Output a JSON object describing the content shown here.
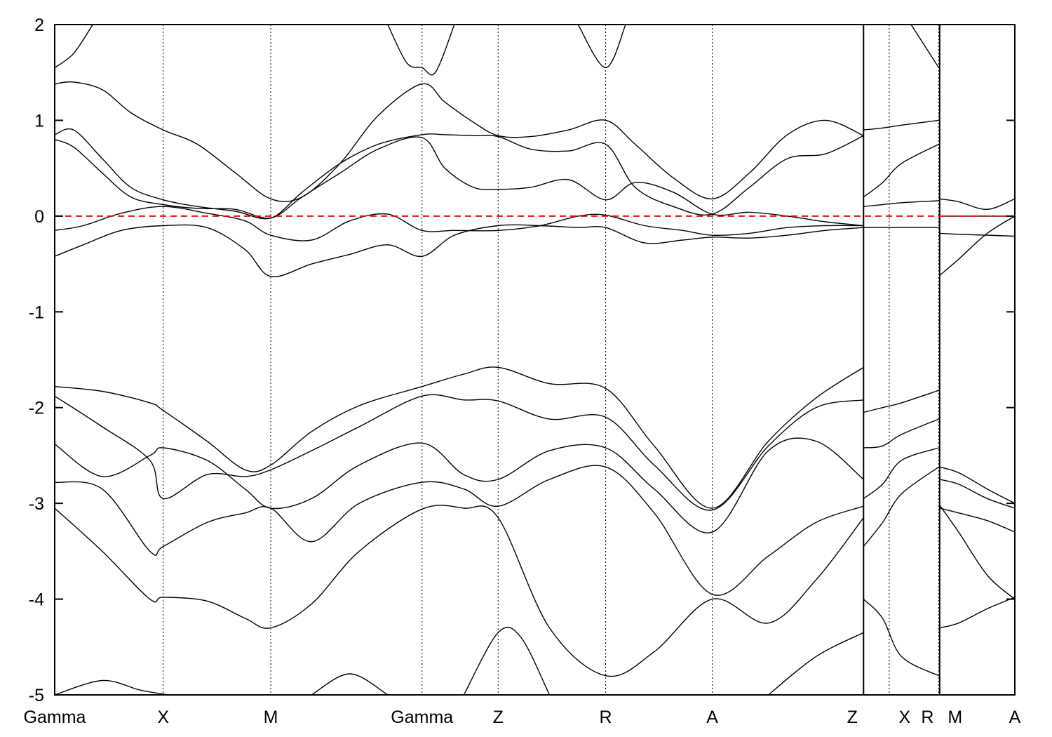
{
  "chart_data": {
    "type": "line",
    "title": "",
    "xlabel": "",
    "ylabel": "",
    "ylim": [
      -5,
      2
    ],
    "yticks": [
      2,
      1,
      0,
      -1,
      -2,
      -3,
      -4,
      -5
    ],
    "ytick_labels": [
      "2",
      "1",
      "0",
      "-1",
      "-2",
      "-3",
      "-4",
      "-5"
    ],
    "grid": false,
    "fermi_level": {
      "energy": 0,
      "color": "#e01010",
      "style": "dashed"
    },
    "kpath": {
      "labels": [
        "Gamma",
        "X",
        "M",
        "Gamma",
        "Z",
        "R",
        "A",
        "Z",
        "X",
        "R",
        "M",
        "A"
      ],
      "positions": [
        0,
        1.14,
        2.27,
        3.86,
        4.66,
        5.79,
        6.91,
        8.5,
        8.77,
        9.29,
        9.3,
        10.09
      ],
      "discontinuities": [
        8.5,
        9.3
      ],
      "xlim": [
        0,
        10.09
      ]
    },
    "series": [
      {
        "x": [
          0,
          0.2,
          0.5,
          0.8,
          1.14,
          1.5,
          1.9,
          2.27,
          2.6,
          3.0,
          3.4,
          3.86,
          4.1,
          4.4,
          4.66,
          5.0,
          5.4,
          5.79,
          6.1,
          6.5,
          6.91,
          7.3,
          7.7,
          8.1,
          8.5
        ],
        "y": [
          1.38,
          1.4,
          1.32,
          1.08,
          0.9,
          0.75,
          0.45,
          0.18,
          0.2,
          0.55,
          1.05,
          1.38,
          1.19,
          0.98,
          0.84,
          0.83,
          0.9,
          1.0,
          0.75,
          0.4,
          0.18,
          0.45,
          0.85,
          1.0,
          0.84
        ]
      },
      {
        "x": [
          0,
          0.2,
          0.5,
          0.8,
          1.14,
          1.5,
          1.9,
          2.27,
          2.6,
          3.0,
          3.4,
          3.86,
          4.1,
          4.4,
          4.66,
          5.0,
          5.4,
          5.79,
          6.1,
          6.5,
          6.91,
          7.3,
          7.7,
          8.1,
          8.5
        ],
        "y": [
          0.85,
          0.9,
          0.6,
          0.3,
          0.17,
          0.1,
          0.05,
          -0.02,
          0.25,
          0.55,
          0.75,
          0.85,
          0.85,
          0.84,
          0.83,
          0.7,
          0.68,
          0.75,
          0.3,
          0.1,
          0.02,
          0.3,
          0.6,
          0.65,
          0.84
        ]
      },
      {
        "x": [
          0,
          0.2,
          0.5,
          0.8,
          1.14,
          1.5,
          1.9,
          2.27,
          2.6,
          3.0,
          3.4,
          3.86,
          4.1,
          4.4,
          4.66,
          5.0,
          5.4,
          5.79,
          6.1,
          6.5,
          6.91,
          7.3,
          7.7,
          8.1,
          8.5
        ],
        "y": [
          0.8,
          0.72,
          0.45,
          0.2,
          0.12,
          0.08,
          0.07,
          -0.02,
          0.2,
          0.45,
          0.7,
          0.82,
          0.5,
          0.3,
          0.28,
          0.3,
          0.38,
          0.17,
          0.35,
          0.25,
          0.02,
          0.04,
          0.0,
          -0.06,
          -0.1
        ]
      },
      {
        "x": [
          0,
          0.3,
          0.7,
          1.14,
          1.6,
          2.0,
          2.27,
          2.7,
          3.1,
          3.5,
          3.86,
          4.2,
          4.66,
          5.1,
          5.5,
          5.79,
          6.2,
          6.6,
          6.91,
          7.3,
          7.7,
          8.1,
          8.5
        ],
        "y": [
          -0.15,
          -0.1,
          0.03,
          0.1,
          0.03,
          -0.05,
          -0.2,
          -0.25,
          -0.05,
          0.02,
          -0.15,
          -0.15,
          -0.15,
          -0.1,
          0.0,
          0.01,
          -0.1,
          -0.15,
          -0.2,
          -0.18,
          -0.12,
          -0.1,
          -0.1
        ]
      },
      {
        "x": [
          0,
          0.3,
          0.7,
          1.14,
          1.6,
          2.0,
          2.27,
          2.7,
          3.1,
          3.5,
          3.86,
          4.2,
          4.66,
          5.1,
          5.5,
          5.79,
          6.2,
          6.6,
          6.91,
          7.3,
          7.7,
          8.1,
          8.5
        ],
        "y": [
          -0.42,
          -0.3,
          -0.15,
          -0.1,
          -0.12,
          -0.35,
          -0.63,
          -0.5,
          -0.4,
          -0.3,
          -0.42,
          -0.2,
          -0.1,
          -0.1,
          -0.12,
          -0.12,
          -0.28,
          -0.25,
          -0.22,
          -0.23,
          -0.2,
          -0.15,
          -0.12
        ]
      },
      {
        "x": [
          0,
          0.5,
          1.0,
          1.14,
          1.6,
          2.0,
          2.27,
          2.7,
          3.2,
          3.86,
          4.3,
          4.66,
          5.2,
          5.79,
          6.3,
          6.91,
          7.5,
          8.0,
          8.5
        ],
        "y": [
          -1.78,
          -1.83,
          -1.95,
          -2.03,
          -2.35,
          -2.65,
          -2.6,
          -2.25,
          -1.98,
          -1.78,
          -1.65,
          -1.58,
          -1.75,
          -1.8,
          -2.4,
          -3.05,
          -2.35,
          -1.9,
          -1.58
        ]
      },
      {
        "x": [
          0,
          0.5,
          1.0,
          1.14,
          1.6,
          2.0,
          2.27,
          2.7,
          3.2,
          3.86,
          4.3,
          4.66,
          5.2,
          5.79,
          6.3,
          6.91,
          7.5,
          8.0,
          8.5
        ],
        "y": [
          -1.88,
          -2.2,
          -2.55,
          -2.95,
          -2.7,
          -2.72,
          -2.65,
          -2.45,
          -2.2,
          -1.88,
          -1.92,
          -1.93,
          -2.12,
          -2.1,
          -2.6,
          -3.07,
          -2.4,
          -2.0,
          -1.92
        ]
      },
      {
        "x": [
          0,
          0.5,
          1.0,
          1.14,
          1.6,
          2.0,
          2.27,
          2.7,
          3.2,
          3.86,
          4.3,
          4.66,
          5.2,
          5.79,
          6.3,
          6.91,
          7.5,
          8.0,
          8.5
        ],
        "y": [
          -2.38,
          -2.72,
          -2.5,
          -2.42,
          -2.55,
          -2.85,
          -3.05,
          -2.95,
          -2.6,
          -2.37,
          -2.7,
          -2.75,
          -2.45,
          -2.42,
          -2.85,
          -3.3,
          -2.45,
          -2.35,
          -2.75
        ]
      },
      {
        "x": [
          0,
          0.5,
          1.0,
          1.14,
          1.6,
          2.0,
          2.27,
          2.7,
          3.2,
          3.86,
          4.3,
          4.66,
          5.2,
          5.79,
          6.3,
          6.91,
          7.5,
          8.0,
          8.5
        ],
        "y": [
          -2.78,
          -2.85,
          -3.5,
          -3.45,
          -3.2,
          -3.1,
          -3.05,
          -3.4,
          -3.0,
          -2.78,
          -2.85,
          -3.03,
          -2.75,
          -2.62,
          -3.1,
          -3.95,
          -3.55,
          -3.2,
          -3.03
        ]
      },
      {
        "x": [
          0,
          0.5,
          1.0,
          1.14,
          1.6,
          2.0,
          2.27,
          2.7,
          3.2,
          3.86,
          4.3,
          4.66,
          5.2,
          5.79,
          6.3,
          6.91,
          7.5,
          8.0,
          8.5
        ],
        "y": [
          -3.05,
          -3.5,
          -4.0,
          -3.98,
          -4.02,
          -4.2,
          -4.3,
          -4.05,
          -3.5,
          -3.06,
          -3.05,
          -3.15,
          -4.3,
          -4.8,
          -4.55,
          -4.0,
          -4.25,
          -3.8,
          -3.15
        ]
      },
      {
        "x": [
          0,
          0.5,
          0.9,
          1.2
        ],
        "y": [
          -5.0,
          -4.85,
          -4.95,
          -5.0
        ]
      },
      {
        "x": [
          2.7,
          3.1,
          3.5
        ],
        "y": [
          -5.0,
          -4.78,
          -5.0
        ]
      },
      {
        "x": [
          4.3,
          4.66,
          4.9,
          5.2
        ],
        "y": [
          -5.0,
          -4.35,
          -4.4,
          -5.0
        ]
      },
      {
        "x": [
          7.5,
          8.0,
          8.5
        ],
        "y": [
          -5.0,
          -4.6,
          -4.35
        ]
      },
      {
        "x": [
          0,
          0.2,
          0.4
        ],
        "y": [
          1.55,
          1.7,
          2.0
        ]
      },
      {
        "x": [
          3.5,
          3.7,
          3.86,
          4.0,
          4.2
        ],
        "y": [
          2.0,
          1.6,
          1.55,
          1.5,
          2.0
        ]
      },
      {
        "x": [
          5.5,
          5.79,
          6.0
        ],
        "y": [
          2.0,
          1.55,
          2.0
        ]
      },
      {
        "x": [
          8.5,
          8.7,
          8.9,
          9.29
        ],
        "y": [
          0.9,
          0.92,
          0.95,
          1.0
        ]
      },
      {
        "x": [
          8.5,
          8.7,
          8.9,
          9.29
        ],
        "y": [
          0.2,
          0.35,
          0.55,
          0.75
        ]
      },
      {
        "x": [
          8.5,
          8.7,
          8.9,
          9.29
        ],
        "y": [
          0.1,
          0.12,
          0.14,
          0.16
        ]
      },
      {
        "x": [
          8.5,
          9.29
        ],
        "y": [
          -0.12,
          -0.12
        ]
      },
      {
        "x": [
          8.5,
          8.7,
          8.9,
          9.29
        ],
        "y": [
          -2.05,
          -2.0,
          -1.95,
          -1.82
        ]
      },
      {
        "x": [
          8.5,
          8.7,
          8.9,
          9.29
        ],
        "y": [
          -2.42,
          -2.4,
          -2.28,
          -2.12
        ]
      },
      {
        "x": [
          8.5,
          8.7,
          8.9,
          9.29
        ],
        "y": [
          -2.95,
          -2.8,
          -2.55,
          -2.42
        ]
      },
      {
        "x": [
          8.5,
          8.7,
          8.9,
          9.29
        ],
        "y": [
          -3.45,
          -3.2,
          -2.9,
          -2.62
        ]
      },
      {
        "x": [
          8.5,
          8.7,
          8.9,
          9.29
        ],
        "y": [
          -4.0,
          -4.2,
          -4.6,
          -4.8
        ]
      },
      {
        "x": [
          9.0,
          9.29
        ],
        "y": [
          2.0,
          1.55
        ]
      },
      {
        "x": [
          9.3,
          9.5,
          9.8,
          10.09
        ],
        "y": [
          0.0,
          0.0,
          0.0,
          0.0
        ]
      },
      {
        "x": [
          9.3,
          9.5,
          9.8,
          10.09
        ],
        "y": [
          0.18,
          0.15,
          0.07,
          0.18
        ]
      },
      {
        "x": [
          9.3,
          9.5,
          9.8,
          10.09
        ],
        "y": [
          -0.62,
          -0.45,
          -0.18,
          0.0
        ]
      },
      {
        "x": [
          9.3,
          9.5,
          9.8,
          10.09
        ],
        "y": [
          -0.18,
          -0.19,
          -0.2,
          -0.21
        ]
      },
      {
        "x": [
          9.3,
          9.5,
          9.8,
          10.09
        ],
        "y": [
          -2.62,
          -2.68,
          -2.85,
          -3.0
        ]
      },
      {
        "x": [
          9.3,
          9.5,
          9.8,
          10.09
        ],
        "y": [
          -2.75,
          -2.8,
          -2.95,
          -3.05
        ]
      },
      {
        "x": [
          9.3,
          9.5,
          9.8,
          10.09
        ],
        "y": [
          -3.05,
          -3.1,
          -3.18,
          -3.3
        ]
      },
      {
        "x": [
          9.3,
          9.5,
          9.8,
          10.09
        ],
        "y": [
          -3.02,
          -3.3,
          -3.75,
          -4.0
        ]
      },
      {
        "x": [
          9.3,
          9.5,
          9.8,
          10.09
        ],
        "y": [
          -4.3,
          -4.25,
          -4.1,
          -3.98
        ]
      }
    ]
  }
}
